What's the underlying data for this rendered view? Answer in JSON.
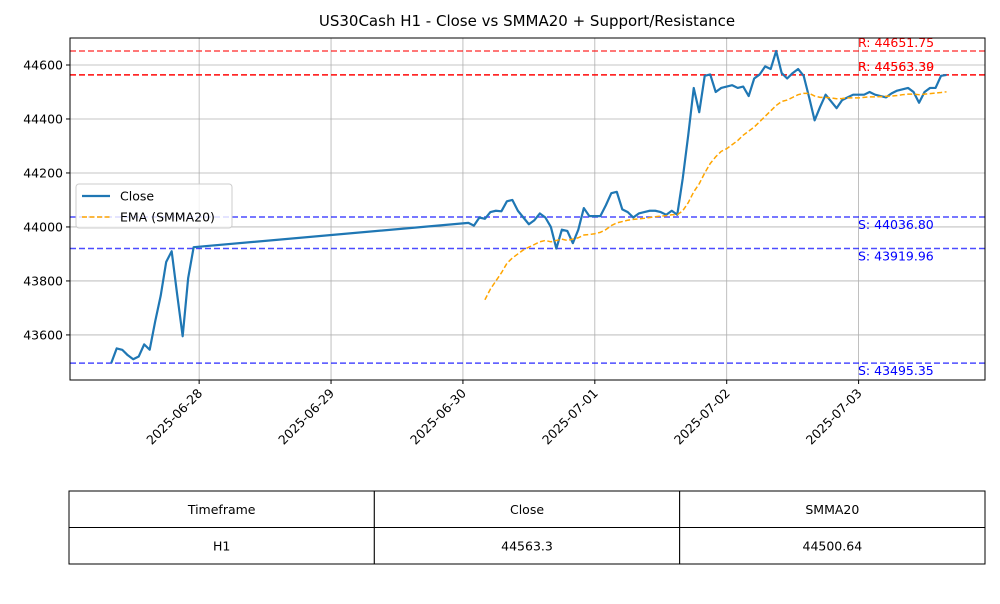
{
  "chart_data": {
    "type": "line",
    "title": "US30Cash H1 - Close vs SMMA20 + Support/Resistance",
    "x": [
      "2025-06-27T08:00",
      "2025-06-27T09:00",
      "2025-06-27T10:00",
      "2025-06-27T11:00",
      "2025-06-27T12:00",
      "2025-06-27T13:00",
      "2025-06-27T14:00",
      "2025-06-27T15:00",
      "2025-06-27T16:00",
      "2025-06-27T17:00",
      "2025-06-27T18:00",
      "2025-06-27T19:00",
      "2025-06-27T20:00",
      "2025-06-27T21:00",
      "2025-06-27T22:00",
      "2025-06-27T23:00",
      "2025-06-30T01:00",
      "2025-06-30T02:00",
      "2025-06-30T03:00",
      "2025-06-30T04:00",
      "2025-06-30T05:00",
      "2025-06-30T06:00",
      "2025-06-30T07:00",
      "2025-06-30T08:00",
      "2025-06-30T09:00",
      "2025-06-30T10:00",
      "2025-06-30T11:00",
      "2025-06-30T12:00",
      "2025-06-30T13:00",
      "2025-06-30T14:00",
      "2025-06-30T15:00",
      "2025-06-30T16:00",
      "2025-06-30T17:00",
      "2025-06-30T18:00",
      "2025-06-30T19:00",
      "2025-06-30T20:00",
      "2025-06-30T21:00",
      "2025-06-30T22:00",
      "2025-06-30T23:00",
      "2025-07-01T00:00",
      "2025-07-01T01:00",
      "2025-07-01T02:00",
      "2025-07-01T03:00",
      "2025-07-01T04:00",
      "2025-07-01T05:00",
      "2025-07-01T06:00",
      "2025-07-01T07:00",
      "2025-07-01T08:00",
      "2025-07-01T09:00",
      "2025-07-01T10:00",
      "2025-07-01T11:00",
      "2025-07-01T12:00",
      "2025-07-01T13:00",
      "2025-07-01T14:00",
      "2025-07-01T15:00",
      "2025-07-01T16:00",
      "2025-07-01T17:00",
      "2025-07-01T18:00",
      "2025-07-01T19:00",
      "2025-07-01T20:00",
      "2025-07-01T21:00",
      "2025-07-01T22:00",
      "2025-07-01T23:00",
      "2025-07-02T00:00",
      "2025-07-02T01:00",
      "2025-07-02T02:00",
      "2025-07-02T03:00",
      "2025-07-02T04:00",
      "2025-07-02T05:00",
      "2025-07-02T06:00",
      "2025-07-02T07:00",
      "2025-07-02T08:00",
      "2025-07-02T09:00",
      "2025-07-02T10:00",
      "2025-07-02T11:00",
      "2025-07-02T12:00",
      "2025-07-02T13:00",
      "2025-07-02T14:00",
      "2025-07-02T15:00",
      "2025-07-02T16:00",
      "2025-07-02T17:00",
      "2025-07-02T18:00",
      "2025-07-02T19:00",
      "2025-07-02T20:00",
      "2025-07-02T21:00",
      "2025-07-02T22:00",
      "2025-07-02T23:00",
      "2025-07-03T00:00",
      "2025-07-03T01:00",
      "2025-07-03T02:00",
      "2025-07-03T03:00",
      "2025-07-03T04:00",
      "2025-07-03T05:00",
      "2025-07-03T06:00",
      "2025-07-03T07:00",
      "2025-07-03T08:00",
      "2025-07-03T09:00",
      "2025-07-03T10:00",
      "2025-07-03T11:00",
      "2025-07-03T12:00",
      "2025-07-03T13:00",
      "2025-07-03T14:00",
      "2025-07-03T15:00",
      "2025-07-03T16:00"
    ],
    "series": [
      {
        "name": "Close",
        "color": "#1f77b4",
        "dash": false,
        "values": [
          43495.35,
          43550,
          43545,
          43525,
          43510,
          43520,
          43565,
          43545,
          43650,
          43745,
          43870,
          43910,
          43750,
          43595,
          43810,
          43925,
          44015,
          44005,
          44035,
          44030,
          44055,
          44060,
          44058,
          44095,
          44100,
          44060,
          44035,
          44010,
          44025,
          44050,
          44035,
          44000,
          43919.96,
          43990,
          43985,
          43940,
          43990,
          44070,
          44040,
          44040,
          44040,
          44080,
          44125,
          44130,
          44065,
          44055,
          44035,
          44050,
          44055,
          44060,
          44060,
          44055,
          44045,
          44060,
          44045,
          44180,
          44340,
          44515,
          44425,
          44560,
          44565,
          44500,
          44515,
          44520,
          44525,
          44515,
          44520,
          44485,
          44550,
          44565,
          44595,
          44585,
          44651.75,
          44570,
          44550,
          44570,
          44585,
          44560,
          44480,
          44395,
          44445,
          44490,
          44465,
          44440,
          44470,
          44480,
          44490,
          44490,
          44490,
          44500,
          44490,
          44485,
          44480,
          44495,
          44505,
          44510,
          44515,
          44500,
          44460,
          44500,
          44515,
          44515,
          44560,
          44563.3
        ]
      },
      {
        "name": "EMA (SMMA20)",
        "color": "#ffa500",
        "dash": true,
        "values": [
          null,
          null,
          null,
          null,
          null,
          null,
          null,
          null,
          null,
          null,
          null,
          null,
          null,
          null,
          null,
          null,
          null,
          null,
          null,
          43730,
          43770,
          43800,
          43830,
          43865,
          43885,
          43900,
          43915,
          43925,
          43935,
          43945,
          43950,
          43945,
          43950,
          43955,
          43950,
          43955,
          43960,
          43970,
          43972,
          43975,
          43980,
          43990,
          44005,
          44015,
          44020,
          44025,
          44028,
          44030,
          44032,
          44035,
          44038,
          44040,
          44042,
          44045,
          44045,
          44060,
          44090,
          44130,
          44160,
          44200,
          44235,
          44260,
          44280,
          44290,
          44305,
          44320,
          44340,
          44355,
          44370,
          44390,
          44410,
          44430,
          44450,
          44465,
          44470,
          44480,
          44490,
          44495,
          44495,
          44485,
          44480,
          44480,
          44478,
          44475,
          44476,
          44478,
          44478,
          44478,
          44480,
          44482,
          44482,
          44483,
          44484,
          44485,
          44487,
          44490,
          44492,
          44492,
          44490,
          44492,
          44494,
          44496,
          44498,
          44500.64
        ]
      }
    ],
    "levels": [
      {
        "value": 44651.75,
        "label": "R: 44651.75",
        "color": "#ff0000",
        "opacity": 0.7
      },
      {
        "value": 44563.3,
        "label": "R: 44563.30",
        "color": "#ff0000",
        "opacity": 0.7
      },
      {
        "value": 44563.39,
        "label": "R: 44563.39",
        "color": "#ff0000",
        "opacity": 0.7
      },
      {
        "value": 44036.8,
        "label": "S: 44036.80",
        "color": "#0000ff",
        "opacity": 0.7
      },
      {
        "value": 43919.96,
        "label": "S: 43919.96",
        "color": "#0000ff",
        "opacity": 0.7
      },
      {
        "value": 43495.35,
        "label": "S: 43495.35",
        "color": "#0000ff",
        "opacity": 0.7
      }
    ],
    "xlim": [
      "2025-06-27T00:30",
      "2025-07-03T23:00"
    ],
    "xticks": [
      "2025-06-28",
      "2025-06-29",
      "2025-06-30",
      "2025-07-01",
      "2025-07-02",
      "2025-07-03"
    ],
    "ylim": [
      43433,
      44700
    ],
    "yticks": [
      43600,
      43800,
      44000,
      44200,
      44400,
      44600
    ],
    "grid": true,
    "legend": "center left"
  },
  "table": {
    "columns": [
      "Timeframe",
      "Close",
      "SMMA20"
    ],
    "rows": [
      [
        "H1",
        44563.3,
        44500.64
      ]
    ]
  }
}
